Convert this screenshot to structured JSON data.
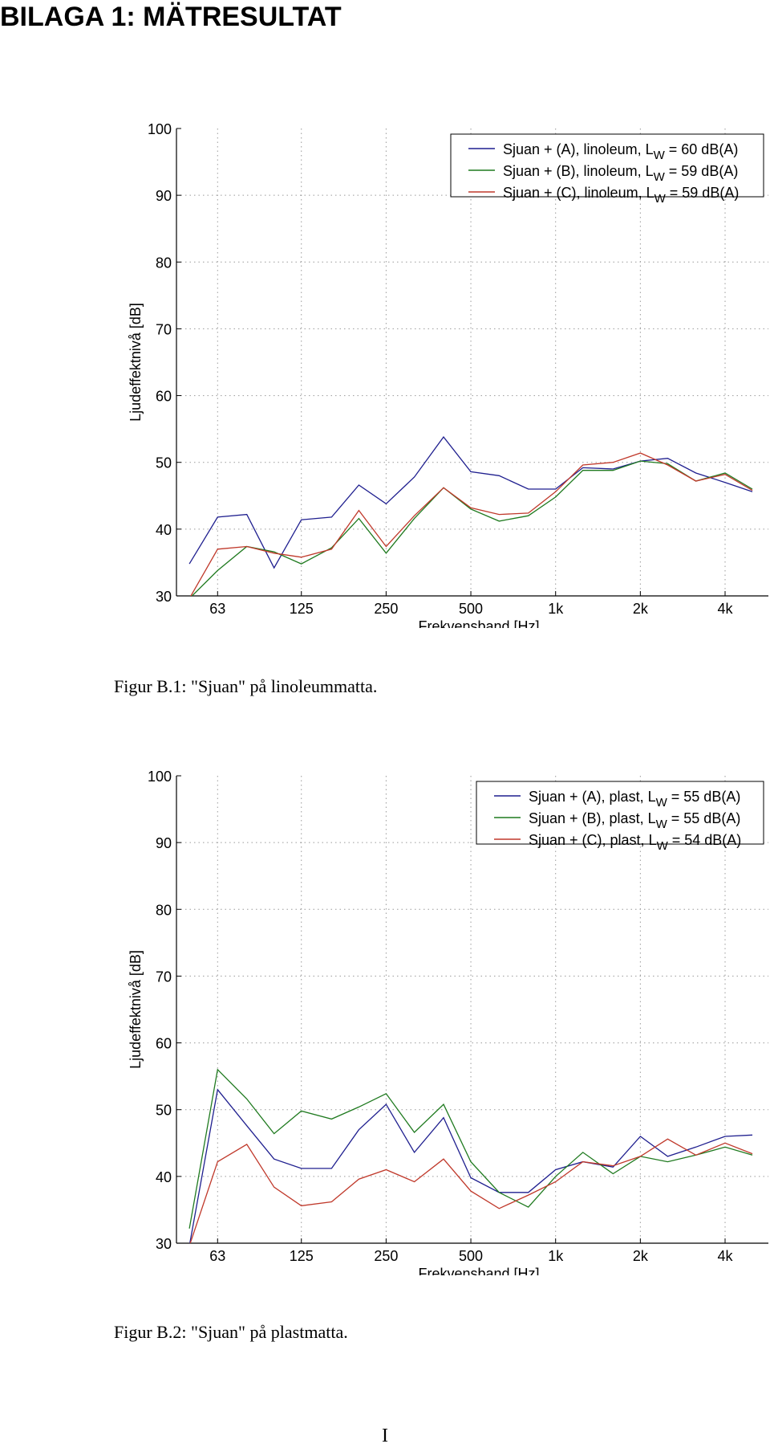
{
  "page": {
    "heading": "BILAGA 1: MÄTRESULTAT",
    "page_number": "I"
  },
  "figures": [
    {
      "caption": "Figur B.1: \"Sjuan\" på linoleummatta."
    },
    {
      "caption": "Figur B.2: \"Sjuan\" på plastmatta."
    }
  ],
  "chart_data": [
    {
      "type": "line",
      "xlabel": "Frekvensband [Hz]",
      "ylabel": "Ljudeffektnivå [dB]",
      "x_scale": "log (third-octave bands)",
      "x": [
        50,
        63,
        80,
        100,
        125,
        160,
        200,
        250,
        315,
        400,
        500,
        630,
        800,
        1000,
        1250,
        1600,
        2000,
        2500,
        3150,
        4000,
        5000
      ],
      "x_tick_values": [
        63,
        125,
        250,
        500,
        1000,
        2000,
        4000
      ],
      "x_tick_labels": [
        "63",
        "125",
        "250",
        "500",
        "1k",
        "2k",
        "4k"
      ],
      "ylim": [
        30,
        100
      ],
      "y_ticks": [
        30,
        40,
        50,
        60,
        70,
        80,
        90,
        100
      ],
      "grid": true,
      "legend_position": "top-right",
      "series": [
        {
          "legend_main": "Sjuan + (A), linoleum, L",
          "legend_sub": "W",
          "legend_tail": " = 60 dB(A)",
          "color": "#1f1f8f",
          "values": [
            34.8,
            41.8,
            42.2,
            34.2,
            41.4,
            41.8,
            46.6,
            43.8,
            47.8,
            53.8,
            48.6,
            48.0,
            46.0,
            46.0,
            49.2,
            49.0,
            50.2,
            50.6,
            48.4,
            47.0,
            45.6
          ]
        },
        {
          "legend_main": "Sjuan + (B), linoleum, L",
          "legend_sub": "W",
          "legend_tail": " = 59 dB(A)",
          "color": "#1f7a1f",
          "values": [
            29.6,
            33.8,
            37.4,
            36.6,
            34.8,
            37.2,
            41.6,
            36.4,
            41.6,
            46.2,
            43.0,
            41.2,
            42.0,
            44.8,
            48.8,
            48.8,
            50.2,
            49.8,
            47.2,
            48.4,
            46.0
          ]
        },
        {
          "legend_main": "Sjuan + (C), linoleum, L",
          "legend_sub": "W",
          "legend_tail": " = 59 dB(A)",
          "color": "#c0392b",
          "values": [
            29.6,
            37.0,
            37.4,
            36.4,
            35.8,
            37.0,
            42.8,
            37.4,
            42.0,
            46.2,
            43.2,
            42.2,
            42.4,
            45.6,
            49.6,
            50.0,
            51.4,
            49.6,
            47.2,
            48.2,
            45.8
          ]
        }
      ]
    },
    {
      "type": "line",
      "xlabel": "Frekvensband [Hz]",
      "ylabel": "Ljudeffektnivå [dB]",
      "x_scale": "log (third-octave bands)",
      "x": [
        50,
        63,
        80,
        100,
        125,
        160,
        200,
        250,
        315,
        400,
        500,
        630,
        800,
        1000,
        1250,
        1600,
        2000,
        2500,
        3150,
        4000,
        5000
      ],
      "x_tick_values": [
        63,
        125,
        250,
        500,
        1000,
        2000,
        4000
      ],
      "x_tick_labels": [
        "63",
        "125",
        "250",
        "500",
        "1k",
        "2k",
        "4k"
      ],
      "ylim": [
        30,
        100
      ],
      "y_ticks": [
        30,
        40,
        50,
        60,
        70,
        80,
        90,
        100
      ],
      "grid": true,
      "legend_position": "top-right",
      "series": [
        {
          "legend_main": "Sjuan + (A), plast, L",
          "legend_sub": "W",
          "legend_tail": " = 55 dB(A)",
          "color": "#1f1f8f",
          "values": [
            29.6,
            53.0,
            47.6,
            42.6,
            41.2,
            41.2,
            47.0,
            50.8,
            43.6,
            48.8,
            39.8,
            37.6,
            37.6,
            41.0,
            42.2,
            41.4,
            46.0,
            43.0,
            44.4,
            46.0,
            46.2
          ]
        },
        {
          "legend_main": "Sjuan + (B), plast, L",
          "legend_sub": "W",
          "legend_tail": " = 55 dB(A)",
          "color": "#1f7a1f",
          "values": [
            32.2,
            56.0,
            51.6,
            46.4,
            49.8,
            48.6,
            50.4,
            52.4,
            46.6,
            50.8,
            42.2,
            37.6,
            35.4,
            40.0,
            43.6,
            40.4,
            43.0,
            42.2,
            43.2,
            44.4,
            43.2
          ]
        },
        {
          "legend_main": "Sjuan + (C), plast, L",
          "legend_sub": "W",
          "legend_tail": " = 54 dB(A)",
          "color": "#c0392b",
          "values": [
            29.6,
            42.2,
            44.8,
            38.4,
            35.6,
            36.2,
            39.6,
            41.0,
            39.2,
            42.6,
            37.8,
            35.2,
            37.2,
            39.2,
            42.2,
            41.6,
            43.0,
            45.6,
            43.2,
            45.0,
            43.4
          ]
        }
      ]
    }
  ]
}
